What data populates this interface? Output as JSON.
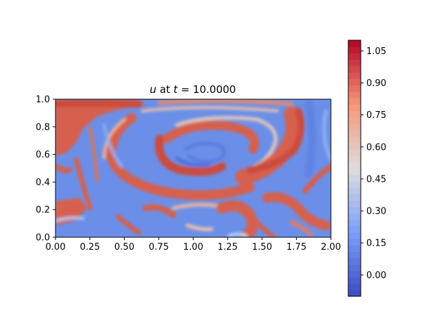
{
  "chart_data": {
    "type": "heatmap",
    "title": {
      "var": "u",
      "middle": " at ",
      "tvar": "t",
      "equals": " = ",
      "tvalue": "10.0000"
    },
    "xlim": [
      0.0,
      2.0
    ],
    "ylim": [
      0.0,
      1.0
    ],
    "x_ticks": [
      "0.00",
      "0.25",
      "0.50",
      "0.75",
      "1.00",
      "1.25",
      "1.50",
      "1.75",
      "2.00"
    ],
    "y_ticks": [
      "0.0",
      "0.2",
      "0.4",
      "0.6",
      "0.8",
      "1.0"
    ],
    "colorbar": {
      "range": [
        -0.1,
        1.1
      ],
      "ticks": [
        "0.00",
        "0.15",
        "0.30",
        "0.45",
        "0.60",
        "0.75",
        "0.90",
        "1.05"
      ],
      "colormap": "coolwarm"
    },
    "field_description_note": null
  }
}
